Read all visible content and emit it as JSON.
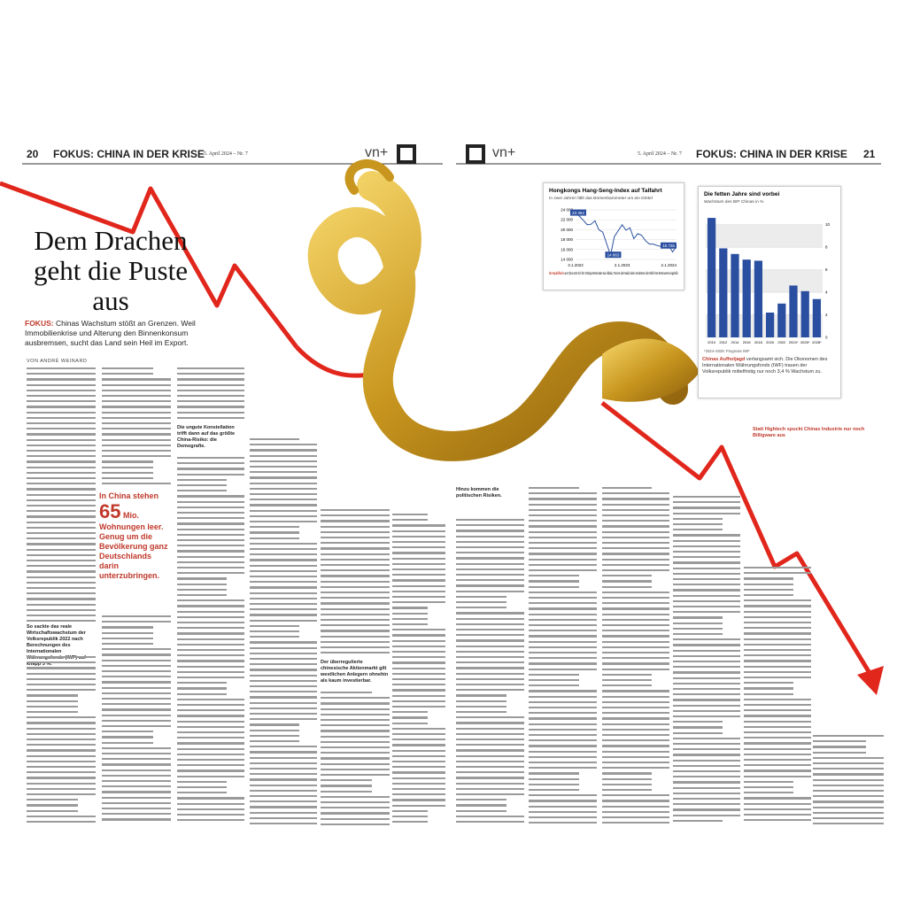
{
  "header_left": {
    "page": "20",
    "section": "FOKUS: CHINA IN DER KRISE",
    "issue": "5. April 2024 – Nr. 7",
    "brand": "vn+"
  },
  "header_right": {
    "brand": "vn+",
    "issue": "5. April 2024 – Nr. 7",
    "section": "FOKUS: CHINA IN DER KRISE",
    "page": "21"
  },
  "article": {
    "title": "Dem Drachen geht die Puste aus",
    "kicker": "FOKUS:",
    "lead": "Chinas Wachstum stößt an Grenzen. Weil Immobilienkrise und Alterung den Binnenkonsum ausbremsen, sucht das Land sein Heil im Export.",
    "byline": "VON ANDRÉ WEINARD",
    "pull_quote": {
      "intro": "In China stehen",
      "number": "65",
      "unit": "Mio.",
      "text": "Wohnungen leer. Genug um die Bevölkerung ganz Deutschlands darin unterzubringen."
    },
    "subheads": [
      "So sackte das reale Wirtschaftswachstum der Volksrepublik 2022 nach Berechnungen des Internationalen Währungsfonds (IWF) auf knapp 3 %.",
      "Die ungute Konstellation trifft dann auf das größte China-Risiko: die Demografie.",
      "Der überregulierte chinesische Aktienmarkt gilt westlichen Anlegern ohnehin als kaum investierbar.",
      "Hinzu kommen die politischen Risiken."
    ]
  },
  "photo_caption": "Statt Hightech spuckt Chinas Industrie nur noch Billigware aus",
  "charts": [
    {
      "type": "line",
      "title": "Hongkongs Hang-Seng-Index auf Talfahrt",
      "subtitle": "In zwei Jahren fällt das Börsenbarometer um ein Drittel",
      "categories": [
        "3.1.2022",
        null,
        null,
        null,
        null,
        null,
        null,
        null,
        null,
        null,
        null,
        null,
        "2.1.2023",
        null,
        null,
        null,
        null,
        null,
        null,
        null,
        null,
        null,
        null,
        null,
        "2.1.2024",
        null,
        null
      ],
      "values": [
        23364,
        22700,
        21900,
        21000,
        21100,
        21800,
        20000,
        19500,
        17200,
        14863,
        18600,
        19800,
        21000,
        19900,
        20400,
        18200,
        19200,
        18900,
        17800,
        17100,
        17100,
        16800,
        16600,
        16900,
        16800,
        15500,
        16725
      ],
      "value_labels": [
        "23 364",
        null,
        null,
        null,
        null,
        null,
        null,
        null,
        null,
        "14 863",
        null,
        null,
        null,
        null,
        null,
        null,
        null,
        null,
        null,
        null,
        null,
        null,
        null,
        null,
        null,
        null,
        "16 725"
      ],
      "color": "#2a4fa0",
      "ylim": [
        14000,
        24000
      ],
      "yticks": [
        {
          "value": 14000,
          "label": "14 000"
        },
        {
          "value": 16000,
          "label": "16 000"
        },
        {
          "value": 18000,
          "label": "18 000"
        },
        {
          "value": 20000,
          "label": "20 000"
        },
        {
          "value": 22000,
          "label": "22 000"
        },
        {
          "value": 24000,
          "label": "24 000"
        }
      ],
      "grid": true,
      "caption_kicker": "Die Kapitalflucht",
      "caption": "aus China setzt sich fort: Einstige Börsenstars wie Alibaba, Tencent oder Baidu haben mindestens die Hälfte ihres Börsenwerts eingebüßt."
    },
    {
      "type": "bar",
      "title": "Die fetten Jahre sind vorbei",
      "subtitle": "Wachstum des BIP Chinas in %",
      "categories": [
        "2010",
        "2012",
        "2014",
        "2016",
        "2018",
        "2020",
        "2022",
        "2024*",
        "2026*",
        "2028*"
      ],
      "values": [
        10.6,
        7.9,
        7.4,
        6.9,
        6.8,
        2.2,
        3.0,
        4.6,
        4.1,
        3.4
      ],
      "color": "#2a4fa0",
      "ylim": [
        0,
        11
      ],
      "yticks": [
        0,
        2,
        4,
        6,
        8,
        10
      ],
      "grid": true,
      "footnote": "*2024–2028: Prognose IWF",
      "caption_kicker": "Chinas Aufholjagd",
      "caption": "verlangsamt sich. Die Ökonomen des Internationalen Währungsfonds (IWF) trauen der Volksrepublik mittelfristig nur noch 3,4 % Wachstum zu."
    }
  ]
}
